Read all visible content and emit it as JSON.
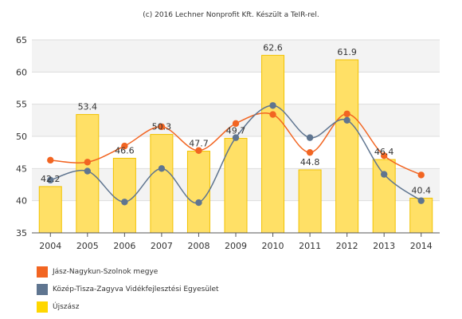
{
  "credit": "(c) 2016 Lechner Nonprofit Kft. Készült a TeIR-rel.",
  "chart_data": {
    "type": "bar",
    "categories": [
      "2004",
      "2005",
      "2006",
      "2007",
      "2008",
      "2009",
      "2010",
      "2011",
      "2012",
      "2013",
      "2014"
    ],
    "ylim": [
      35,
      65
    ],
    "yticks": [
      35,
      40,
      45,
      50,
      55,
      60,
      65
    ],
    "grid": true,
    "legend_position": "bottom-left",
    "series": [
      {
        "name": "Újszász",
        "type": "bar",
        "color": "#FFE066",
        "values": [
          42.2,
          53.4,
          46.6,
          50.3,
          47.7,
          49.7,
          62.6,
          44.8,
          61.9,
          46.4,
          40.4
        ],
        "labels": [
          "42.2",
          "53.4",
          "46.6",
          "50.3",
          "47.7",
          "49.7",
          "62.6",
          "44.8",
          "61.9",
          "46.4",
          "40.4"
        ]
      },
      {
        "name": "Jász-Nagykun-Szolnok megye",
        "type": "line",
        "color": "#F26522",
        "values": [
          46.3,
          46.0,
          48.5,
          51.5,
          47.8,
          52.0,
          53.4,
          47.5,
          53.5,
          47.0,
          44.0
        ]
      },
      {
        "name": "Közép-Tisza-Zagyva Vidékfejlesztési Egyesület",
        "type": "line",
        "color": "#5F7590",
        "values": [
          43.2,
          44.6,
          39.8,
          45.0,
          39.7,
          49.8,
          54.8,
          49.8,
          52.5,
          44.1,
          40.0
        ]
      }
    ]
  },
  "legend": [
    {
      "label": "Jász-Nagykun-Szolnok megye",
      "color": "#F26522"
    },
    {
      "label": "Közép-Tisza-Zagyva Vidékfejlesztési Egyesület",
      "color": "#5F7590"
    },
    {
      "label": "Újszász",
      "color": "#FFD700"
    }
  ]
}
